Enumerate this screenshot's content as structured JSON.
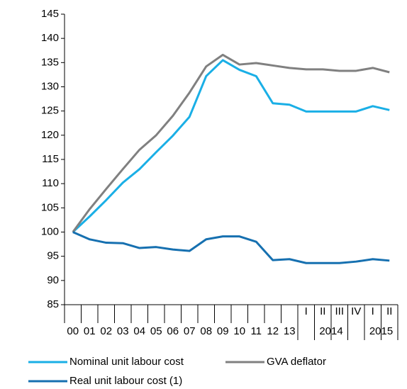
{
  "chart_data": {
    "type": "line",
    "categories": [
      "00",
      "01",
      "02",
      "03",
      "04",
      "05",
      "06",
      "07",
      "08",
      "09",
      "10",
      "11",
      "12",
      "13",
      "I",
      "II",
      "III",
      "IV",
      "I",
      "II"
    ],
    "category_groups": [
      null,
      null,
      null,
      null,
      null,
      null,
      null,
      null,
      null,
      null,
      null,
      null,
      null,
      null,
      "2014",
      "2014",
      "2014",
      "2014",
      "2015",
      "2015"
    ],
    "series": [
      {
        "name": "Nominal unit labour cost",
        "color": "#1aafe6",
        "values": [
          100,
          103.2,
          106.6,
          110.2,
          113,
          116.5,
          119.9,
          123.8,
          132.2,
          135.5,
          133.5,
          132.2,
          126.6,
          126.3,
          124.9,
          124.9,
          124.9,
          124.9,
          126,
          125.2
        ]
      },
      {
        "name": "GVA deflator",
        "color": "#808080",
        "values": [
          100,
          104.7,
          108.9,
          113,
          117,
          120,
          124,
          128.8,
          134.2,
          136.6,
          134.6,
          134.9,
          134.4,
          133.9,
          133.6,
          133.6,
          133.3,
          133.3,
          133.9,
          133.0
        ]
      },
      {
        "name": "Real unit labour cost (1)",
        "color": "#1670b0",
        "values": [
          100,
          98.5,
          97.8,
          97.7,
          96.7,
          96.9,
          96.4,
          96.1,
          98.5,
          99.1,
          99.1,
          98,
          94.2,
          94.4,
          93.6,
          93.6,
          93.6,
          93.9,
          94.4,
          94.1
        ]
      }
    ],
    "ylim": [
      85,
      145
    ],
    "yticks": [
      85,
      90,
      95,
      100,
      105,
      110,
      115,
      120,
      125,
      130,
      135,
      140,
      145
    ],
    "grid": false
  }
}
